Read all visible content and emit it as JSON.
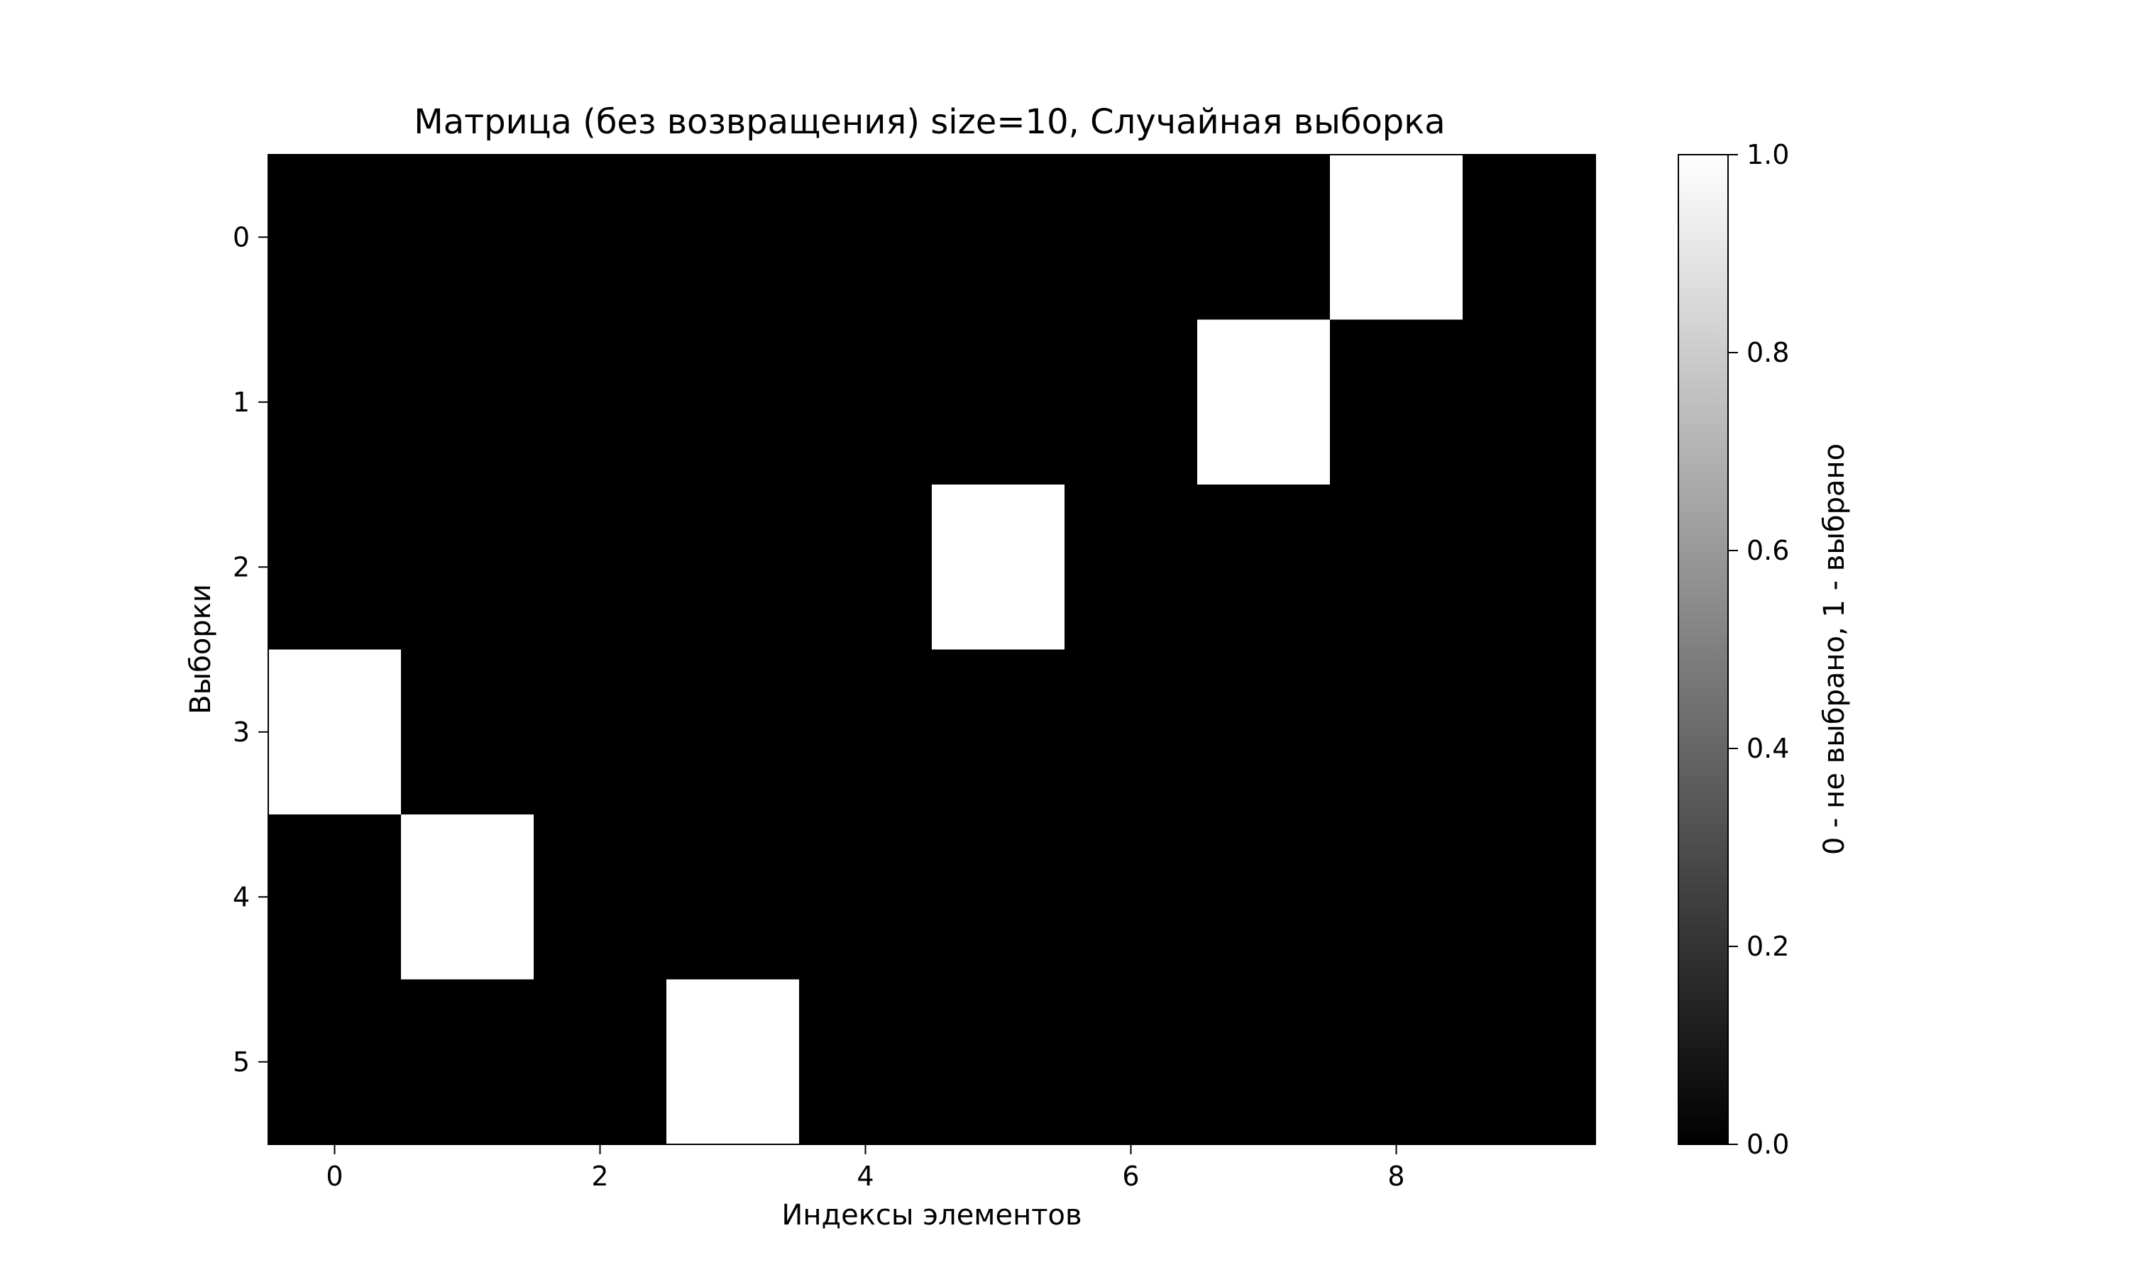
{
  "chart_data": {
    "type": "heatmap",
    "title": "Матрица (без возвращения) size=10, Случайная выборка",
    "xlabel": "Индексы элементов",
    "ylabel": "Выборки",
    "colormap": "gray",
    "x_ticks": [
      "0",
      "2",
      "4",
      "6",
      "8"
    ],
    "y_ticks": [
      "0",
      "1",
      "2",
      "3",
      "4",
      "5"
    ],
    "xlim": [
      -0.5,
      9.5
    ],
    "ylim": [
      5.5,
      -0.5
    ],
    "matrix": [
      [
        0,
        0,
        0,
        0,
        0,
        0,
        0,
        0,
        1,
        0
      ],
      [
        0,
        0,
        0,
        0,
        0,
        0,
        0,
        1,
        0,
        0
      ],
      [
        0,
        0,
        0,
        0,
        0,
        1,
        0,
        0,
        0,
        0
      ],
      [
        1,
        0,
        0,
        0,
        0,
        0,
        0,
        0,
        0,
        0
      ],
      [
        0,
        1,
        0,
        0,
        0,
        0,
        0,
        0,
        0,
        0
      ],
      [
        0,
        0,
        0,
        1,
        0,
        0,
        0,
        0,
        0,
        0
      ]
    ],
    "colorbar": {
      "label": "0 - не выбрано, 1 - выбрано",
      "range": [
        0.0,
        1.0
      ],
      "ticks": [
        "0.0",
        "0.2",
        "0.4",
        "0.6",
        "0.8",
        "1.0"
      ]
    }
  }
}
